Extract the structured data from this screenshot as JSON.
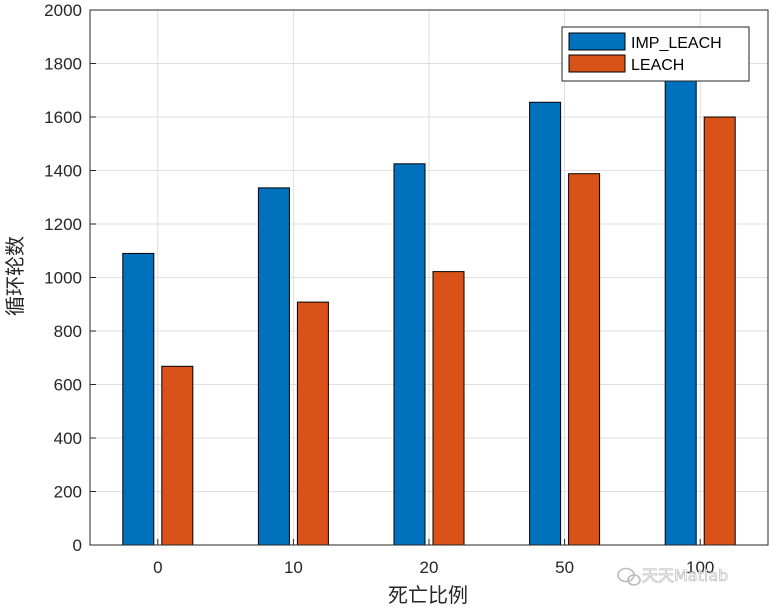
{
  "chart_data": {
    "type": "bar",
    "categories": [
      "0",
      "10",
      "20",
      "50",
      "100"
    ],
    "series": [
      {
        "name": "IMP_LEACH",
        "values": [
          1090,
          1335,
          1425,
          1655,
          1750
        ],
        "color": "#0072BD"
      },
      {
        "name": "LEACH",
        "values": [
          668,
          908,
          1022,
          1388,
          1600
        ],
        "color": "#D95319"
      }
    ],
    "xlabel": "死亡比例",
    "ylabel": "循环轮数",
    "ylim": [
      0,
      2000
    ],
    "yticks": [
      0,
      200,
      400,
      600,
      800,
      1000,
      1200,
      1400,
      1600,
      1800,
      2000
    ],
    "grid": true,
    "legend_position": "top-right"
  },
  "watermark": {
    "text": "天天Matlab",
    "icon": "wechat-icon"
  }
}
